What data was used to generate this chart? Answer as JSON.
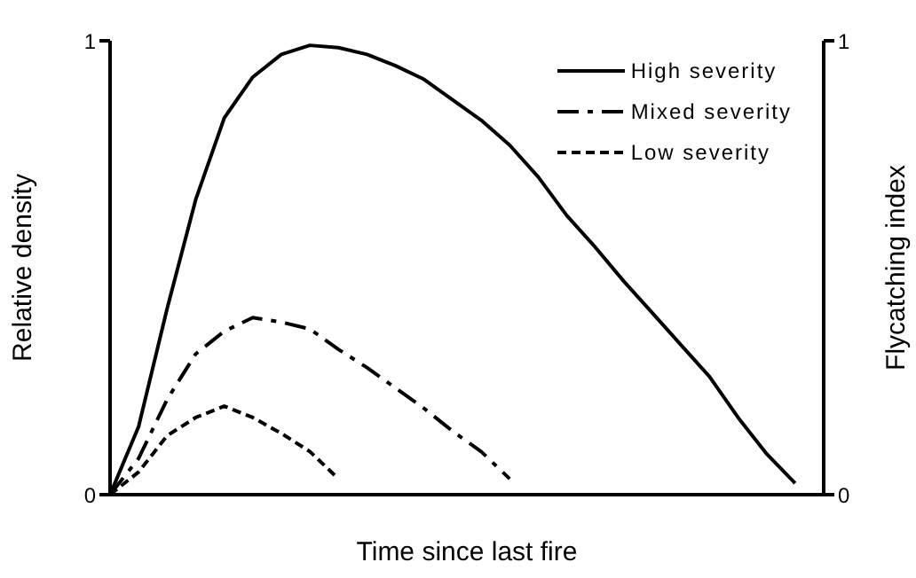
{
  "chart_data": {
    "type": "line",
    "xlabel": "Time since last fire",
    "ylabel": "Relative density",
    "y2label": "Flycatching index",
    "categories": [
      null,
      null,
      null,
      null,
      null,
      null,
      null,
      null,
      null,
      null,
      null,
      null,
      null,
      null,
      null,
      null,
      null,
      null,
      null,
      null,
      null,
      null,
      null,
      null,
      null,
      null
    ],
    "series": [
      {
        "name": "High severity",
        "color": "#000000",
        "line_style": "solid",
        "values": [
          0,
          0.15,
          0.41,
          0.65,
          0.83,
          0.92,
          0.97,
          0.99,
          0.985,
          0.97,
          0.945,
          0.915,
          0.87,
          0.825,
          0.77,
          0.7,
          0.615,
          0.545,
          0.47,
          0.4,
          0.33,
          0.26,
          0.17,
          0.09,
          0.025,
          null
        ]
      },
      {
        "name": "Mixed severity",
        "color": "#000000",
        "line_style": "dashdot",
        "values": [
          0,
          0.08,
          0.21,
          0.31,
          0.36,
          0.39,
          0.38,
          0.365,
          0.32,
          0.28,
          0.235,
          0.19,
          0.14,
          0.095,
          0.035,
          null,
          null,
          null,
          null,
          null,
          null,
          null,
          null,
          null,
          null,
          null
        ]
      },
      {
        "name": "Low severity",
        "color": "#000000",
        "line_style": "dashed",
        "values": [
          0,
          0.05,
          0.13,
          0.17,
          0.195,
          0.17,
          0.135,
          0.095,
          0.035,
          null,
          null,
          null,
          null,
          null,
          null,
          null,
          null,
          null,
          null,
          null,
          null,
          null,
          null,
          null,
          null,
          null
        ]
      }
    ],
    "ylim": [
      0,
      1
    ],
    "yticks": [
      0,
      1
    ],
    "y2lim": [
      0,
      1
    ],
    "y2ticks": [
      0,
      1
    ],
    "tick_labels": "y",
    "legend": "top right",
    "marker": "none"
  }
}
